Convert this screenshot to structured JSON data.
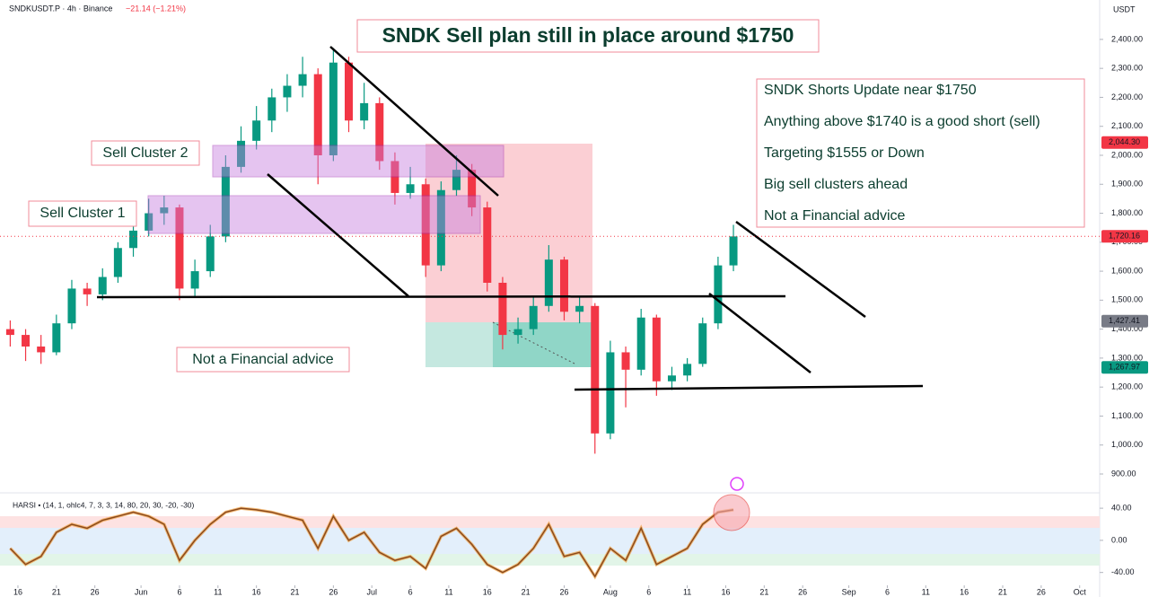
{
  "header": {
    "symbol": "SNDKUSDT.P · 4h · Binance",
    "change": "−21.14 (−1.21%)",
    "currency": "USDT"
  },
  "annotations": {
    "title": "SNDK Sell plan still in place around $1750",
    "notes": [
      "SNDK Shorts Update near $1750",
      "Anything above $1740 is a good short (sell)",
      "Targeting $1555 or Down",
      "Big sell clusters ahead",
      "Not a Financial advice"
    ],
    "cluster2": "Sell Cluster 2",
    "cluster1": "Sell Cluster 1",
    "disclaimer": "Not a Financial advice"
  },
  "chart_data": {
    "type": "candlestick",
    "x": [
      -1,
      1,
      3,
      5,
      7,
      9,
      11,
      13,
      15,
      17,
      19,
      21,
      23,
      25,
      27,
      29,
      31,
      33,
      35,
      37,
      39,
      41,
      43,
      45,
      47,
      49,
      51,
      53,
      55,
      57,
      59,
      61,
      63,
      65,
      67,
      69,
      71,
      73,
      75,
      77,
      79,
      81,
      83,
      85,
      87,
      89,
      91,
      93
    ],
    "ohlc": [
      [
        1400,
        1430,
        1340,
        1380
      ],
      [
        1380,
        1400,
        1290,
        1340
      ],
      [
        1340,
        1380,
        1280,
        1320
      ],
      [
        1320,
        1450,
        1310,
        1420
      ],
      [
        1420,
        1570,
        1400,
        1540
      ],
      [
        1540,
        1560,
        1480,
        1520
      ],
      [
        1520,
        1610,
        1500,
        1580
      ],
      [
        1580,
        1700,
        1560,
        1680
      ],
      [
        1680,
        1770,
        1650,
        1740
      ],
      [
        1740,
        1850,
        1720,
        1800
      ],
      [
        1800,
        1860,
        1760,
        1820
      ],
      [
        1820,
        1830,
        1500,
        1540
      ],
      [
        1540,
        1640,
        1510,
        1600
      ],
      [
        1600,
        1760,
        1580,
        1720
      ],
      [
        1720,
        2000,
        1700,
        1960
      ],
      [
        1960,
        2100,
        1940,
        2050
      ],
      [
        2050,
        2170,
        2020,
        2120
      ],
      [
        2120,
        2230,
        2080,
        2200
      ],
      [
        2200,
        2280,
        2150,
        2240
      ],
      [
        2240,
        2340,
        2200,
        2280
      ],
      [
        2280,
        2300,
        1900,
        2000
      ],
      [
        2000,
        2370,
        1980,
        2320
      ],
      [
        2320,
        2340,
        2080,
        2120
      ],
      [
        2120,
        2250,
        2090,
        2180
      ],
      [
        2180,
        2200,
        1950,
        1980
      ],
      [
        1980,
        2010,
        1830,
        1870
      ],
      [
        1870,
        1960,
        1850,
        1900
      ],
      [
        1900,
        1920,
        1580,
        1620
      ],
      [
        1620,
        1910,
        1600,
        1880
      ],
      [
        1880,
        2000,
        1860,
        1950
      ],
      [
        1950,
        1970,
        1790,
        1820
      ],
      [
        1820,
        1840,
        1530,
        1560
      ],
      [
        1560,
        1580,
        1330,
        1380
      ],
      [
        1380,
        1440,
        1350,
        1400
      ],
      [
        1400,
        1510,
        1380,
        1480
      ],
      [
        1480,
        1690,
        1460,
        1640
      ],
      [
        1640,
        1650,
        1430,
        1460
      ],
      [
        1460,
        1510,
        1420,
        1480
      ],
      [
        1480,
        1490,
        970,
        1040
      ],
      [
        1040,
        1360,
        1020,
        1320
      ],
      [
        1320,
        1340,
        1130,
        1260
      ],
      [
        1260,
        1470,
        1240,
        1440
      ],
      [
        1440,
        1450,
        1170,
        1220
      ],
      [
        1220,
        1270,
        1190,
        1240
      ],
      [
        1240,
        1300,
        1220,
        1280
      ],
      [
        1280,
        1440,
        1270,
        1420
      ],
      [
        1420,
        1650,
        1400,
        1620
      ],
      [
        1620,
        1760,
        1600,
        1720
      ]
    ],
    "up_color": "#089981",
    "down_color": "#f23645",
    "xlim": [
      -2.33,
      140.6
    ],
    "xticks": [
      {
        "value": 0,
        "label": "16"
      },
      {
        "value": 5,
        "label": "21"
      },
      {
        "value": 10,
        "label": "26"
      },
      {
        "value": 16,
        "label": "Jun"
      },
      {
        "value": 21,
        "label": "6"
      },
      {
        "value": 26,
        "label": "11"
      },
      {
        "value": 31,
        "label": "16"
      },
      {
        "value": 36,
        "label": "21"
      },
      {
        "value": 41,
        "label": "26"
      },
      {
        "value": 46,
        "label": "Jul"
      },
      {
        "value": 51,
        "label": "6"
      },
      {
        "value": 56,
        "label": "11"
      },
      {
        "value": 61,
        "label": "16"
      },
      {
        "value": 66,
        "label": "21"
      },
      {
        "value": 71,
        "label": "26"
      },
      {
        "value": 77,
        "label": "Aug"
      },
      {
        "value": 82,
        "label": "6"
      },
      {
        "value": 87,
        "label": "11"
      },
      {
        "value": 92,
        "label": "16"
      },
      {
        "value": 97,
        "label": "21"
      },
      {
        "value": 102,
        "label": "26"
      },
      {
        "value": 108,
        "label": "Sep"
      },
      {
        "value": 113,
        "label": "6"
      },
      {
        "value": 118,
        "label": "11"
      },
      {
        "value": 123,
        "label": "16"
      },
      {
        "value": 128,
        "label": "21"
      },
      {
        "value": 133,
        "label": "26"
      },
      {
        "value": 138,
        "label": "Oct"
      }
    ],
    "ylim": [
      838,
      2536
    ],
    "yticks": [
      {
        "value": 900,
        "label": "900.00"
      },
      {
        "value": 1000,
        "label": "1,000.00"
      },
      {
        "value": 1100,
        "label": "1,100.00"
      },
      {
        "value": 1200,
        "label": "1,200.00"
      },
      {
        "value": 1300,
        "label": "1,300.00"
      },
      {
        "value": 1400,
        "label": "1,400.00"
      },
      {
        "value": 1500,
        "label": "1,500.00"
      },
      {
        "value": 1600,
        "label": "1,600.00"
      },
      {
        "value": 1700,
        "label": "1,700.00"
      },
      {
        "value": 1800,
        "label": "1,800.00"
      },
      {
        "value": 1900,
        "label": "1,900.00"
      },
      {
        "value": 2000,
        "label": "2,000.00"
      },
      {
        "value": 2100,
        "label": "2,100.00"
      },
      {
        "value": 2200,
        "label": "2,200.00"
      },
      {
        "value": 2300,
        "label": "2,300.00"
      },
      {
        "value": 2400,
        "label": "2,400.00"
      }
    ],
    "price_labels": [
      {
        "value": 2044.3,
        "label": "2,044.30",
        "color": "#f23645"
      },
      {
        "value": 1720.16,
        "label": "1,720.16",
        "color": "#f23645"
      },
      {
        "value": 1427.41,
        "label": "1,427.41",
        "color": "#787b86"
      },
      {
        "value": 1267.97,
        "label": "1,267.97",
        "color": "#089981"
      }
    ],
    "indicator": {
      "name": "HARSI • (14, 1, ohlc4, 7, 3, 3, 14, 80, 20, 30, -20, -30)",
      "color": "#8b4a1c",
      "values": [
        -10,
        -30,
        -20,
        10,
        20,
        15,
        25,
        30,
        35,
        30,
        20,
        -25,
        0,
        20,
        35,
        40,
        38,
        35,
        30,
        25,
        -10,
        30,
        0,
        10,
        -15,
        -25,
        -20,
        -35,
        5,
        15,
        -5,
        -30,
        -40,
        -30,
        -10,
        20,
        -20,
        -15,
        -45,
        -10,
        -25,
        15,
        -30,
        -20,
        -10,
        20,
        35,
        38
      ],
      "y2lim": [
        -56,
        58
      ],
      "y2ticks": [
        {
          "value": 40,
          "label": "40.00"
        },
        {
          "value": 0,
          "label": "0.00"
        },
        {
          "value": -40,
          "label": "-40.00"
        }
      ]
    }
  }
}
